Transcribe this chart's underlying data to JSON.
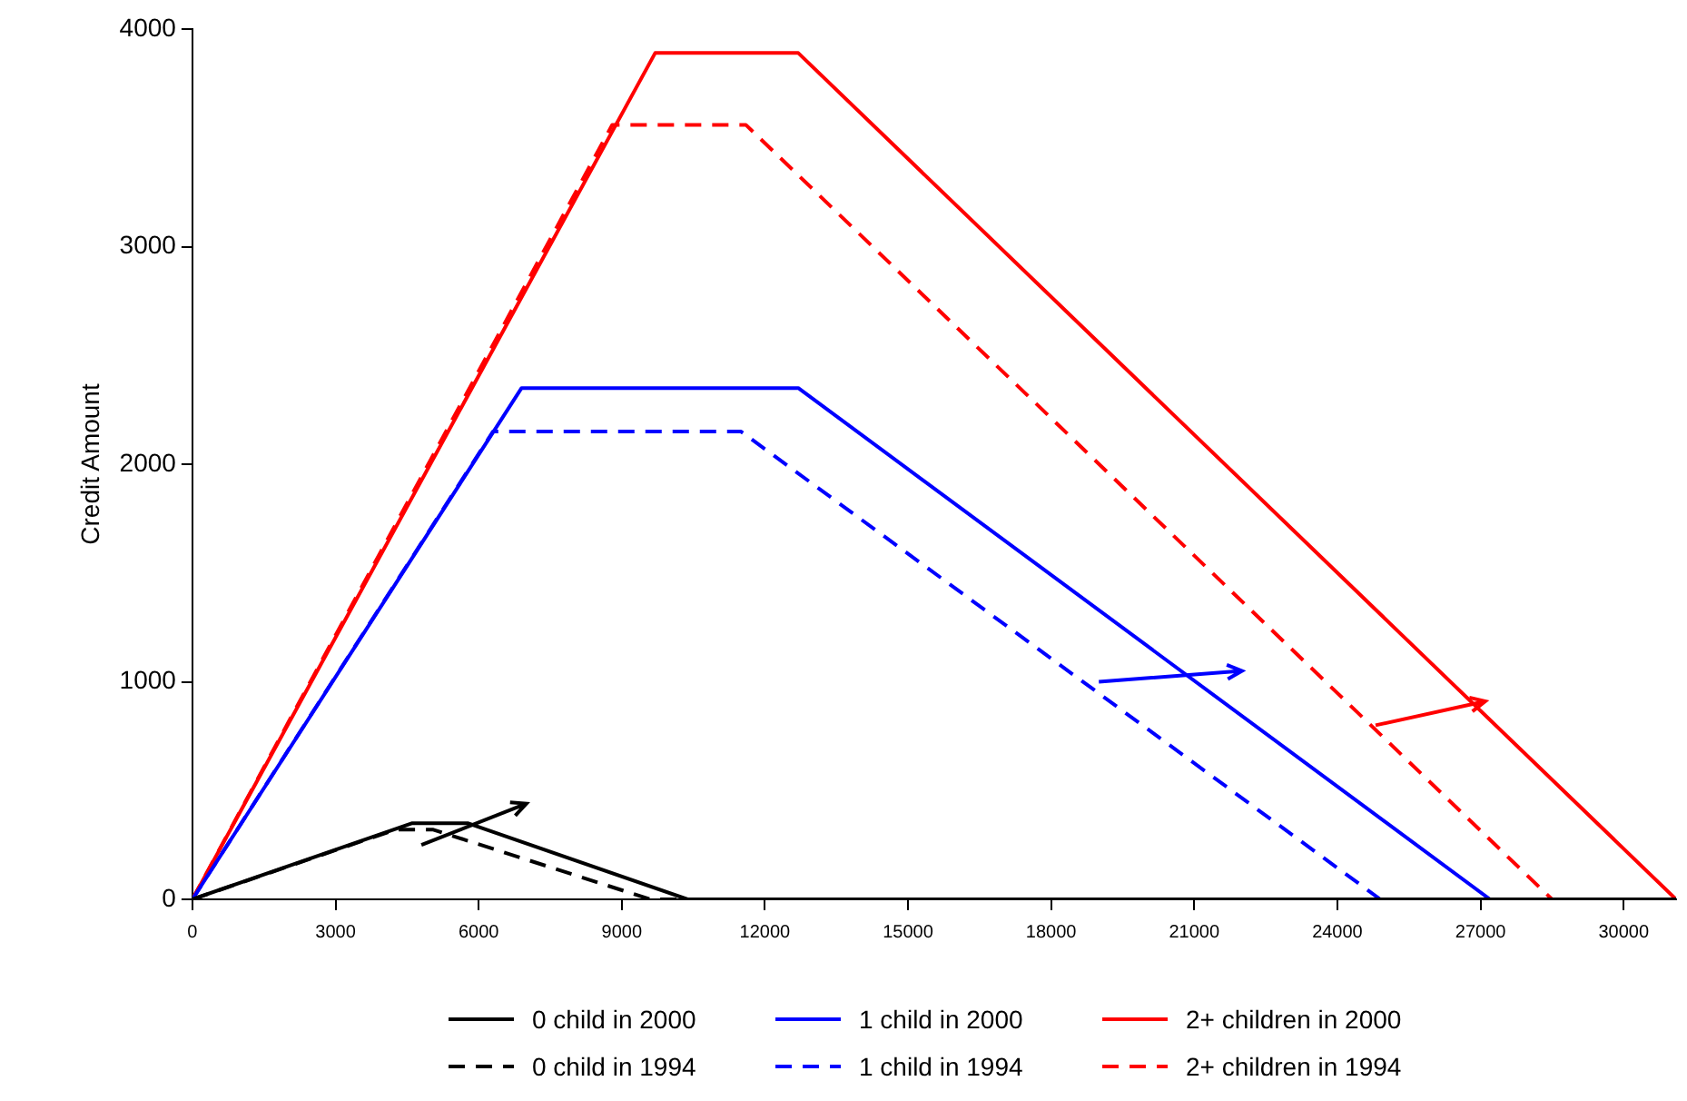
{
  "chart_data": {
    "type": "line",
    "ylabel": "Credit Amount",
    "legend": "bottom",
    "grid": false,
    "marker": "none",
    "xlim": [
      0,
      31100
    ],
    "ylim": [
      0,
      4000
    ],
    "xticks": [
      0,
      3000,
      6000,
      9000,
      12000,
      15000,
      18000,
      21000,
      24000,
      27000,
      30000
    ],
    "yticks": [
      0,
      1000,
      2000,
      3000,
      4000
    ],
    "series": [
      {
        "name": "0 child in 2000",
        "color": "#000000",
        "line_style": "solid",
        "x": [
          0,
          4610,
          5770,
          10380,
          31100
        ],
        "values": [
          0,
          350,
          350,
          0,
          0
        ]
      },
      {
        "name": "1 child in 2000",
        "color": "#0000ff",
        "line_style": "solid",
        "x": [
          0,
          6900,
          12700,
          27200,
          31100
        ],
        "values": [
          0,
          2350,
          2350,
          0,
          0
        ]
      },
      {
        "name": "2+ children in 2000",
        "color": "#ff0000",
        "line_style": "solid",
        "x": [
          0,
          9700,
          12700,
          31100
        ],
        "values": [
          0,
          3890,
          3890,
          0
        ]
      },
      {
        "name": "0 child in 1994",
        "color": "#000000",
        "line_style": "dashed",
        "x": [
          0,
          4250,
          5050,
          9600,
          31100
        ],
        "values": [
          0,
          320,
          320,
          0,
          0
        ]
      },
      {
        "name": "1 child in 1994",
        "color": "#0000ff",
        "line_style": "dashed",
        "x": [
          0,
          6300,
          11500,
          24900,
          31100
        ],
        "values": [
          0,
          2150,
          2150,
          0,
          0
        ]
      },
      {
        "name": "2+ children in 1994",
        "color": "#ff0000",
        "line_style": "dashed",
        "x": [
          0,
          8800,
          11600,
          28500,
          31100
        ],
        "values": [
          0,
          3560,
          3560,
          0,
          0
        ]
      }
    ]
  }
}
